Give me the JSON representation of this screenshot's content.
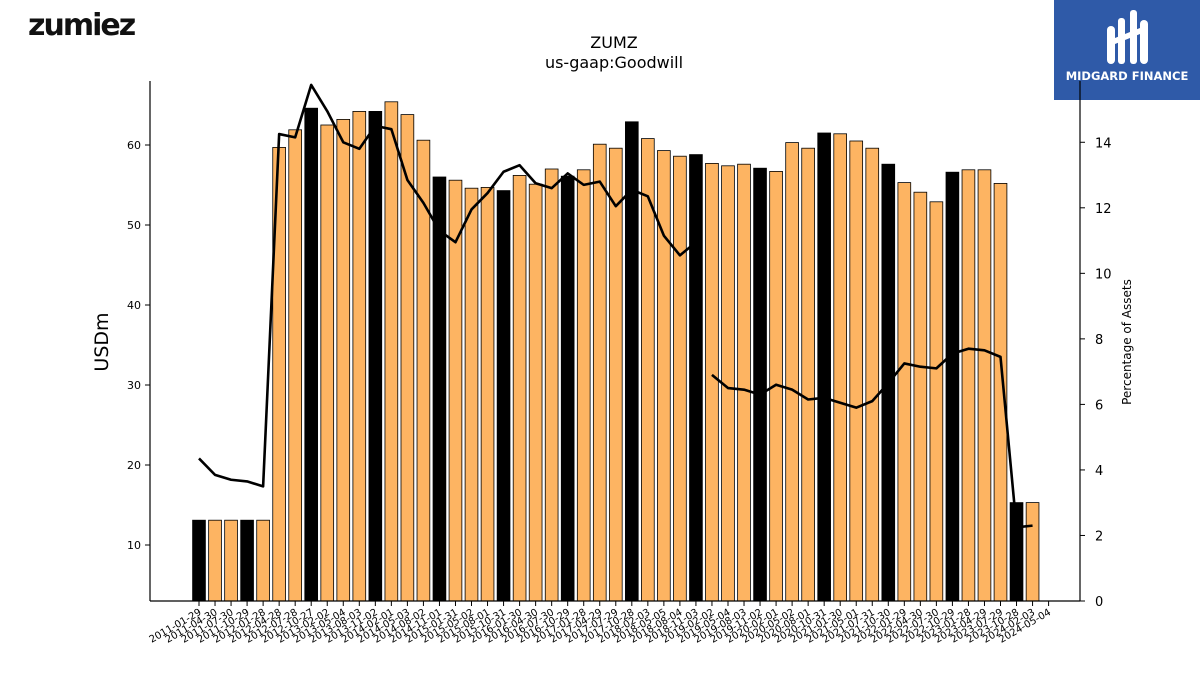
{
  "branding": {
    "company_logo_text": "zumiez",
    "watermark_text": "MIDGARD FINANCE"
  },
  "colors": {
    "bar_fill": "#fdb462",
    "bar_fill_highlight": "#000000",
    "bar_edge": "#000000",
    "line": "#000000",
    "badge_background": "#2f5aa8"
  },
  "chart_data": {
    "type": "bar",
    "title": "ZUMZ",
    "subtitle": "us-gaap:Goodwill",
    "ylabel": "USDm",
    "y2label": "Percentage of Assets",
    "ylim": [
      3,
      68
    ],
    "y2lim": [
      0,
      15.87
    ],
    "y_ticks": [
      10,
      20,
      30,
      40,
      50,
      60
    ],
    "y2_ticks": [
      0,
      2,
      4,
      6,
      8,
      10,
      12,
      14
    ],
    "categories": [
      "2011-01-29",
      "2011-04-30",
      "2011-07-30",
      "2011-10-29",
      "2012-01-28",
      "2012-04-28",
      "2012-07-28",
      "2012-10-27",
      "2013-02-02",
      "2013-05-04",
      "2013-08-03",
      "2013-11-02",
      "2014-02-01",
      "2014-05-03",
      "2014-08-02",
      "2014-11-01",
      "2015-01-31",
      "2015-05-02",
      "2015-08-01",
      "2015-10-31",
      "2016-01-30",
      "2016-04-30",
      "2016-07-30",
      "2016-10-29",
      "2017-01-28",
      "2017-04-29",
      "2017-07-29",
      "2017-10-28",
      "2018-02-03",
      "2018-05-05",
      "2018-08-04",
      "2018-11-03",
      "2019-02-02",
      "2019-05-04",
      "2019-08-03",
      "2019-11-02",
      "2020-02-01",
      "2020-05-02",
      "2020-08-01",
      "2020-10-31",
      "2021-01-30",
      "2021-05-01",
      "2021-07-31",
      "2021-10-30",
      "2022-01-29",
      "2022-04-30",
      "2022-07-30",
      "2022-10-29",
      "2023-01-28",
      "2023-04-29",
      "2023-07-29",
      "2023-10-28",
      "2024-02-03",
      "2024-05-04"
    ],
    "series": [
      {
        "axis": "left",
        "kind": "bar",
        "values": [
          13.1,
          13.1,
          13.1,
          13.1,
          13.1,
          59.7,
          61.9,
          64.6,
          62.5,
          63.2,
          64.2,
          64.2,
          65.4,
          63.8,
          60.6,
          56.0,
          55.6,
          54.6,
          54.7,
          54.3,
          56.2,
          55.1,
          57.0,
          56.1,
          56.9,
          60.1,
          59.6,
          62.9,
          60.8,
          59.3,
          58.6,
          58.8,
          57.7,
          57.4,
          57.6,
          57.1,
          56.7,
          60.3,
          59.6,
          61.5,
          61.4,
          60.5,
          59.6,
          57.6,
          55.3,
          54.1,
          52.9,
          56.6,
          56.9,
          56.9,
          55.2,
          15.3,
          15.3,
          null
        ],
        "highlighted": [
          true,
          false,
          false,
          true,
          false,
          false,
          false,
          true,
          false,
          false,
          false,
          true,
          false,
          false,
          false,
          true,
          false,
          false,
          false,
          true,
          false,
          false,
          false,
          true,
          false,
          false,
          false,
          true,
          false,
          false,
          false,
          true,
          false,
          false,
          false,
          true,
          false,
          false,
          false,
          true,
          false,
          false,
          false,
          true,
          false,
          false,
          false,
          true,
          false,
          false,
          false,
          true,
          false,
          false
        ]
      },
      {
        "axis": "right",
        "kind": "line",
        "values": [
          4.35,
          3.85,
          3.7,
          3.65,
          3.5,
          14.25,
          14.15,
          15.75,
          14.95,
          14.0,
          13.8,
          14.5,
          14.4,
          12.85,
          12.15,
          11.3,
          10.95,
          11.95,
          12.45,
          13.1,
          13.3,
          12.75,
          12.6,
          13.05,
          12.7,
          12.8,
          12.05,
          12.55,
          12.35,
          11.15,
          10.55,
          10.95,
          6.9,
          6.5,
          6.45,
          6.3,
          6.6,
          6.45,
          6.15,
          6.2,
          6.05,
          5.9,
          6.1,
          6.65,
          7.25,
          7.15,
          7.1,
          7.55,
          7.7,
          7.65,
          7.45,
          2.25,
          2.3,
          null
        ],
        "break_after_index": 31
      }
    ]
  }
}
